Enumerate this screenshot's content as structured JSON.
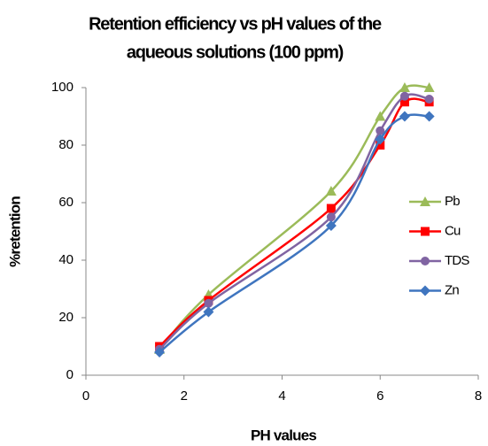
{
  "chart_data": {
    "type": "line",
    "title": [
      "Retention efficiency vs pH values of the",
      "aqueous solutions (100 ppm)"
    ],
    "x_label": "PH values",
    "y_label": "%retention",
    "x": [
      1.5,
      2.5,
      5,
      6,
      6.5,
      7
    ],
    "series": [
      {
        "name": "Pb",
        "color": "#9bbb59",
        "marker": "triangle",
        "values": [
          9,
          28,
          64,
          90,
          100,
          100
        ]
      },
      {
        "name": "Cu",
        "color": "#ff0000",
        "marker": "square",
        "values": [
          10,
          26,
          58,
          80,
          95,
          95
        ]
      },
      {
        "name": "TDS",
        "color": "#8064a2",
        "marker": "circle",
        "values": [
          9,
          25,
          55,
          85,
          97,
          96
        ]
      },
      {
        "name": "Zn",
        "color": "#3f75bf",
        "marker": "diamond",
        "values": [
          8,
          22,
          52,
          82,
          90,
          90
        ]
      }
    ],
    "xlim": [
      0,
      8
    ],
    "xticks": [
      0,
      2,
      4,
      6,
      8
    ],
    "ylim": [
      0,
      100
    ],
    "yticks": [
      0,
      20,
      40,
      60,
      80,
      100
    ],
    "smooth": true,
    "legend": "right"
  }
}
